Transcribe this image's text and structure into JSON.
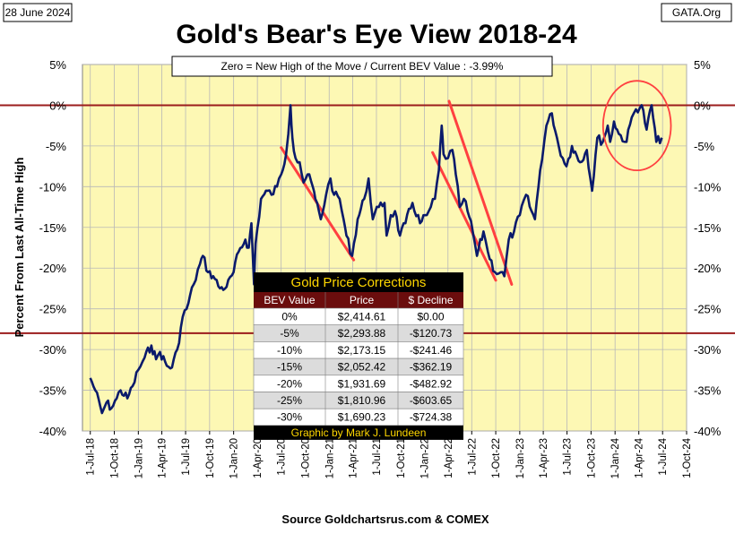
{
  "header": {
    "date": "28 June 2024",
    "source_site": "GATA.Org"
  },
  "chart_data": {
    "type": "line",
    "title": "Gold's Bear's Eye View 2018-24",
    "subtitle": "Zero = New High of the Move / Current  BEV Value : -3.99%",
    "ylabel": "Percent  From  Last  All-Time  High",
    "xlabel": "Source Goldchartsrus.com & COMEX",
    "ylim": [
      -40,
      5
    ],
    "yticks": [
      5,
      0,
      -5,
      -10,
      -15,
      -20,
      -25,
      -30,
      -35,
      -40
    ],
    "ytick_labels": [
      "5%",
      "0%",
      "-5%",
      "-10%",
      "-15%",
      "-20%",
      "-25%",
      "-30%",
      "-35%",
      "-40%"
    ],
    "xlim": [
      "2018-06-01",
      "2024-10-01"
    ],
    "xtick_labels": [
      "1-Jul-18",
      "1-Oct-18",
      "1-Jan-19",
      "1-Apr-19",
      "1-Jul-19",
      "1-Oct-19",
      "1-Jan-20",
      "1-Apr-20",
      "1-Jul-20",
      "1-Oct-20",
      "1-Jan-21",
      "1-Apr-21",
      "1-Jul-21",
      "1-Oct-21",
      "1-Jan-22",
      "1-Apr-22",
      "1-Jul-22",
      "1-Oct-22",
      "1-Jan-23",
      "1-Apr-23",
      "1-Jul-23",
      "1-Oct-23",
      "1-Jan-24",
      "1-Apr-24",
      "1-Jul-24",
      "1-Oct-24"
    ],
    "reference_lines": [
      {
        "label": "zero",
        "y": 0
      },
      {
        "label": "lower",
        "y": -28
      }
    ],
    "series": [
      {
        "name": "Gold BEV",
        "color": "#0a1a6b",
        "points": [
          [
            "2018-07-01",
            -33.5
          ],
          [
            "2018-07-20",
            -35.0
          ],
          [
            "2018-08-15",
            -37.8
          ],
          [
            "2018-09-01",
            -36.5
          ],
          [
            "2018-09-20",
            -37.2
          ],
          [
            "2018-10-10",
            -36.0
          ],
          [
            "2018-10-25",
            -35.0
          ],
          [
            "2018-11-20",
            -36.0
          ],
          [
            "2018-12-10",
            -34.5
          ],
          [
            "2019-01-01",
            -32.5
          ],
          [
            "2019-01-25",
            -31.0
          ],
          [
            "2019-02-20",
            -29.5
          ],
          [
            "2019-03-10",
            -31.2
          ],
          [
            "2019-03-25",
            -30.3
          ],
          [
            "2019-04-20",
            -32.0
          ],
          [
            "2019-05-10",
            -32.2
          ],
          [
            "2019-05-30",
            -30.0
          ],
          [
            "2019-06-20",
            -26.0
          ],
          [
            "2019-07-05",
            -25.0
          ],
          [
            "2019-08-01",
            -22.0
          ],
          [
            "2019-08-25",
            -19.5
          ],
          [
            "2019-09-05",
            -18.5
          ],
          [
            "2019-09-25",
            -20.5
          ],
          [
            "2019-10-15",
            -21.0
          ],
          [
            "2019-11-10",
            -22.5
          ],
          [
            "2019-12-05",
            -22.3
          ],
          [
            "2020-01-01",
            -20.5
          ],
          [
            "2020-01-20",
            -18.0
          ],
          [
            "2020-02-15",
            -16.5
          ],
          [
            "2020-02-28",
            -17.5
          ],
          [
            "2020-03-09",
            -14.5
          ],
          [
            "2020-03-19",
            -22.0
          ],
          [
            "2020-03-25",
            -17.0
          ],
          [
            "2020-04-15",
            -11.5
          ],
          [
            "2020-05-10",
            -10.5
          ],
          [
            "2020-05-25",
            -11.0
          ],
          [
            "2020-06-15",
            -10.0
          ],
          [
            "2020-07-01",
            -8.5
          ],
          [
            "2020-07-20",
            -6.0
          ],
          [
            "2020-08-06",
            0.0
          ],
          [
            "2020-08-13",
            -4.0
          ],
          [
            "2020-08-25",
            -6.5
          ],
          [
            "2020-09-10",
            -7.0
          ],
          [
            "2020-09-25",
            -9.5
          ],
          [
            "2020-10-10",
            -8.5
          ],
          [
            "2020-10-30",
            -10.0
          ],
          [
            "2020-11-09",
            -11.5
          ],
          [
            "2020-11-30",
            -14.0
          ],
          [
            "2020-12-20",
            -11.0
          ],
          [
            "2021-01-06",
            -9.0
          ],
          [
            "2021-01-20",
            -11.0
          ],
          [
            "2021-02-10",
            -11.5
          ],
          [
            "2021-02-25",
            -14.0
          ],
          [
            "2021-03-08",
            -16.0
          ],
          [
            "2021-03-30",
            -18.5
          ],
          [
            "2021-04-20",
            -14.0
          ],
          [
            "2021-05-15",
            -11.5
          ],
          [
            "2021-06-01",
            -9.0
          ],
          [
            "2021-06-17",
            -14.0
          ],
          [
            "2021-07-10",
            -12.5
          ],
          [
            "2021-08-01",
            -12.0
          ],
          [
            "2021-08-09",
            -16.0
          ],
          [
            "2021-08-25",
            -13.5
          ],
          [
            "2021-09-10",
            -13.0
          ],
          [
            "2021-09-29",
            -16.0
          ],
          [
            "2021-10-20",
            -14.5
          ],
          [
            "2021-11-16",
            -12.0
          ],
          [
            "2021-12-15",
            -14.5
          ],
          [
            "2022-01-10",
            -13.5
          ],
          [
            "2022-01-25",
            -12.5
          ],
          [
            "2022-02-10",
            -11.5
          ],
          [
            "2022-02-25",
            -8.0
          ],
          [
            "2022-03-08",
            -2.5
          ],
          [
            "2022-03-15",
            -6.0
          ],
          [
            "2022-04-01",
            -6.5
          ],
          [
            "2022-04-18",
            -5.5
          ],
          [
            "2022-05-01",
            -8.5
          ],
          [
            "2022-05-16",
            -12.5
          ],
          [
            "2022-06-01",
            -11.5
          ],
          [
            "2022-06-15",
            -13.0
          ],
          [
            "2022-07-05",
            -15.5
          ],
          [
            "2022-07-21",
            -18.5
          ],
          [
            "2022-08-15",
            -15.5
          ],
          [
            "2022-09-01",
            -18.0
          ],
          [
            "2022-09-28",
            -20.5
          ],
          [
            "2022-10-20",
            -20.5
          ],
          [
            "2022-11-03",
            -21.0
          ],
          [
            "2022-11-20",
            -16.5
          ],
          [
            "2022-12-10",
            -15.5
          ],
          [
            "2023-01-01",
            -13.5
          ],
          [
            "2023-01-25",
            -11.0
          ],
          [
            "2023-02-15",
            -13.0
          ],
          [
            "2023-02-28",
            -14.0
          ],
          [
            "2023-03-20",
            -8.0
          ],
          [
            "2023-04-13",
            -2.5
          ],
          [
            "2023-05-04",
            -1.0
          ],
          [
            "2023-05-30",
            -5.0
          ],
          [
            "2023-06-15",
            -6.5
          ],
          [
            "2023-06-29",
            -7.5
          ],
          [
            "2023-07-20",
            -5.0
          ],
          [
            "2023-08-20",
            -7.0
          ],
          [
            "2023-09-15",
            -5.5
          ],
          [
            "2023-10-05",
            -10.5
          ],
          [
            "2023-10-25",
            -4.0
          ],
          [
            "2023-11-15",
            -4.5
          ],
          [
            "2023-12-04",
            -2.5
          ],
          [
            "2023-12-13",
            -4.5
          ],
          [
            "2023-12-28",
            -2.0
          ],
          [
            "2024-01-15",
            -3.5
          ],
          [
            "2024-02-14",
            -4.5
          ],
          [
            "2024-03-05",
            -1.5
          ],
          [
            "2024-03-21",
            -0.5
          ],
          [
            "2024-04-12",
            0.0
          ],
          [
            "2024-05-01",
            -3.0
          ],
          [
            "2024-05-20",
            0.0
          ],
          [
            "2024-06-07",
            -4.5
          ],
          [
            "2024-06-28",
            -3.99
          ]
        ]
      }
    ],
    "trend_lines": [
      {
        "name": "2020-21 correction",
        "color": "#ff4040",
        "from": [
          "2020-07-01",
          -5.2
        ],
        "to": [
          "2021-04-05",
          -19.0
        ]
      },
      {
        "name": "2022 correction A",
        "color": "#ff4040",
        "from": [
          "2022-02-01",
          -5.8
        ],
        "to": [
          "2022-10-01",
          -21.5
        ]
      },
      {
        "name": "2022 correction B",
        "color": "#ff4040",
        "from": [
          "2022-04-05",
          0.5
        ],
        "to": [
          "2022-12-01",
          -22.0
        ]
      }
    ],
    "highlight": {
      "name": "2024 highs",
      "color": "#ff4040",
      "center": [
        "2024-03-25",
        -2.5
      ],
      "radius_x_days": 130,
      "radius_y_pct": 5.5
    },
    "corrections_table": {
      "title": "Gold Price Corrections",
      "headers": [
        "BEV Value",
        "Price",
        "$ Decline"
      ],
      "rows": [
        [
          "0%",
          "$2,414.61",
          "$0.00"
        ],
        [
          "-5%",
          "$2,293.88",
          "-$120.73"
        ],
        [
          "-10%",
          "$2,173.15",
          "-$241.46"
        ],
        [
          "-15%",
          "$2,052.42",
          "-$362.19"
        ],
        [
          "-20%",
          "$1,931.69",
          "-$482.92"
        ],
        [
          "-25%",
          "$1,810.96",
          "-$603.65"
        ],
        [
          "-30%",
          "$1,690.23",
          "-$724.38"
        ]
      ],
      "footer": "Graphic by Mark J. Lundeen"
    },
    "colors": {
      "plot_bg": "#fdf8b4",
      "line": "#0a1a6b",
      "reference": "#9b1c1c",
      "table_head_bg": "#6b0d0d",
      "table_title_bg": "#000000",
      "table_text_gold": "#ffd700"
    }
  }
}
